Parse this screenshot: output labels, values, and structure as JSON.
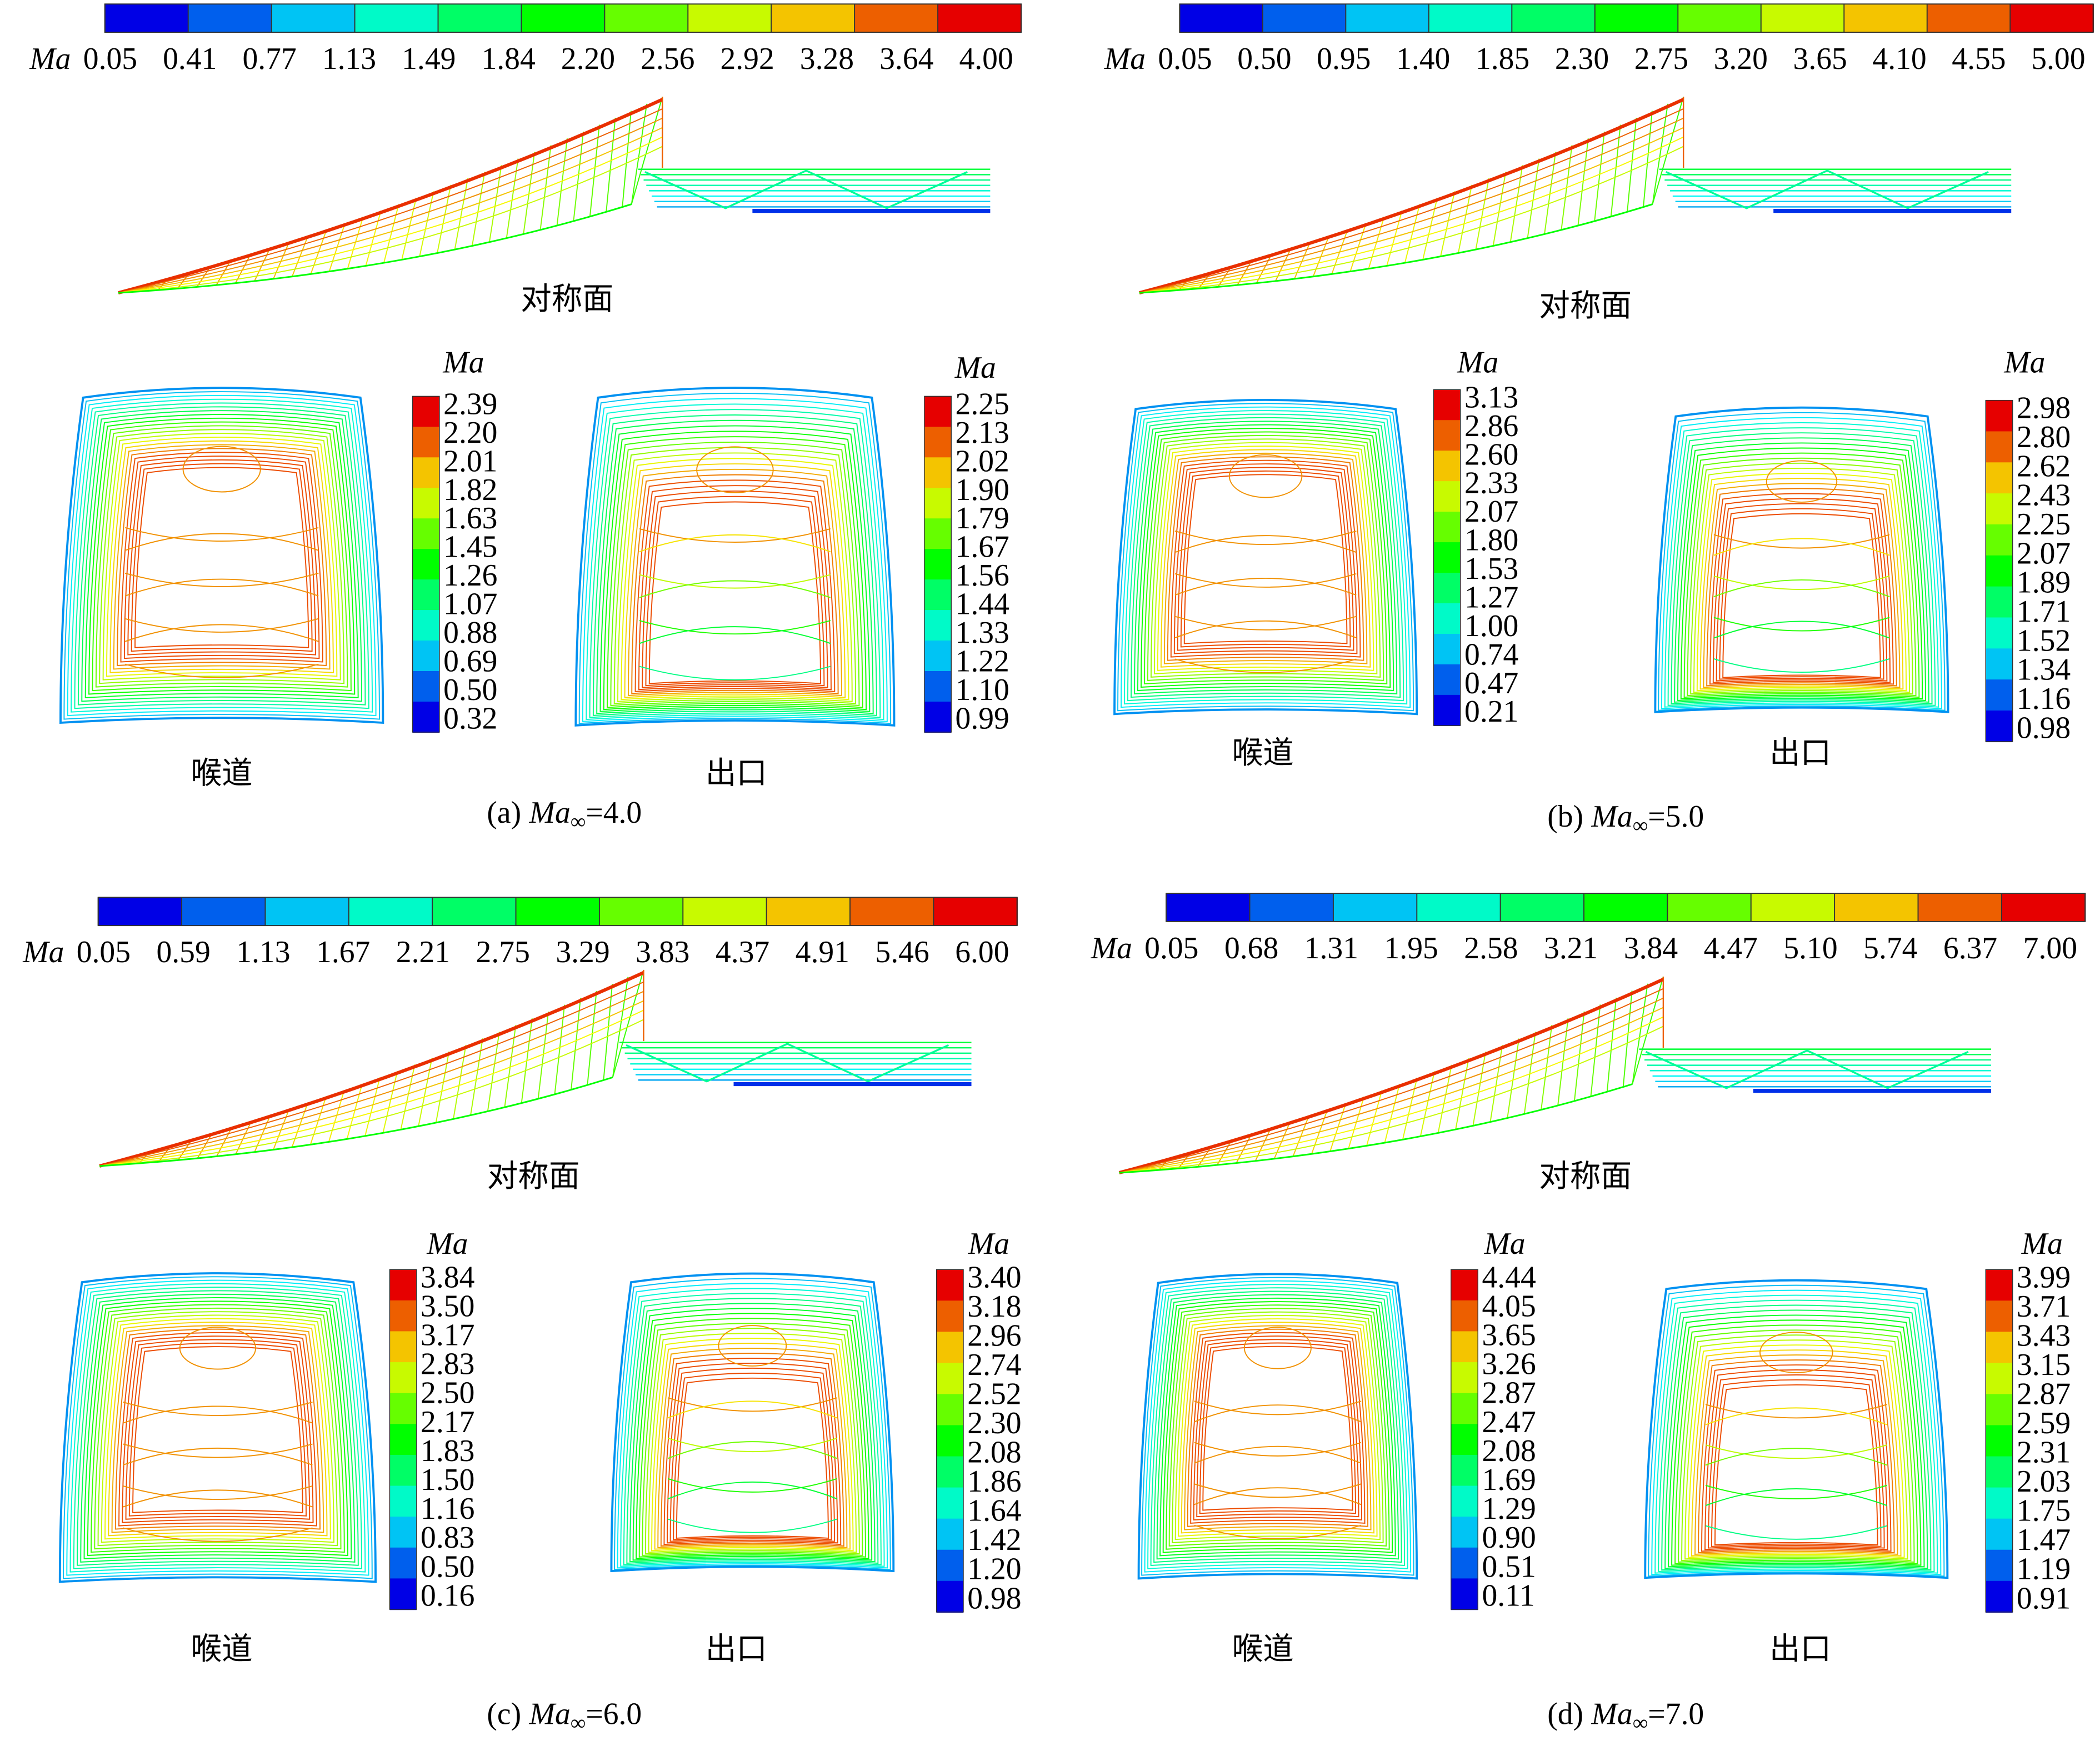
{
  "panels": [
    {
      "caption": {
        "label": "(a)",
        "symbol": "Ma",
        "subscript": "∞",
        "suffix": "=4.0"
      },
      "symmetry_plane": {
        "legend_title": "Ma",
        "legend_ticks": [
          "0.05",
          "0.41",
          "0.77",
          "1.13",
          "1.49",
          "1.84",
          "2.20",
          "2.56",
          "2.92",
          "3.28",
          "3.64",
          "4.00"
        ],
        "label": "对称面"
      },
      "throat": {
        "legend_title": "Ma",
        "legend_ticks": [
          "2.39",
          "2.20",
          "2.01",
          "1.82",
          "1.63",
          "1.45",
          "1.26",
          "1.07",
          "0.88",
          "0.69",
          "0.50",
          "0.32"
        ],
        "label": "喉道"
      },
      "exit": {
        "legend_title": "Ma",
        "legend_ticks": [
          "2.25",
          "2.13",
          "2.02",
          "1.90",
          "1.79",
          "1.67",
          "1.56",
          "1.44",
          "1.33",
          "1.22",
          "1.10",
          "0.99"
        ],
        "label": "出口"
      }
    },
    {
      "caption": {
        "label": "(b)",
        "symbol": "Ma",
        "subscript": "∞",
        "suffix": "=5.0"
      },
      "symmetry_plane": {
        "legend_title": "Ma",
        "legend_ticks": [
          "0.05",
          "0.50",
          "0.95",
          "1.40",
          "1.85",
          "2.30",
          "2.75",
          "3.20",
          "3.65",
          "4.10",
          "4.55",
          "5.00"
        ],
        "label": "对称面"
      },
      "throat": {
        "legend_title": "Ma",
        "legend_ticks": [
          "3.13",
          "2.86",
          "2.60",
          "2.33",
          "2.07",
          "1.80",
          "1.53",
          "1.27",
          "1.00",
          "0.74",
          "0.47",
          "0.21"
        ],
        "label": "喉道"
      },
      "exit": {
        "legend_title": "Ma",
        "legend_ticks": [
          "2.98",
          "2.80",
          "2.62",
          "2.43",
          "2.25",
          "2.07",
          "1.89",
          "1.71",
          "1.52",
          "1.34",
          "1.16",
          "0.98"
        ],
        "label": "出口"
      }
    },
    {
      "caption": {
        "label": "(c)",
        "symbol": "Ma",
        "subscript": "∞",
        "suffix": "=6.0"
      },
      "symmetry_plane": {
        "legend_title": "Ma",
        "legend_ticks": [
          "0.05",
          "0.59",
          "1.13",
          "1.67",
          "2.21",
          "2.75",
          "3.29",
          "3.83",
          "4.37",
          "4.91",
          "5.46",
          "6.00"
        ],
        "label": "对称面"
      },
      "throat": {
        "legend_title": "Ma",
        "legend_ticks": [
          "3.84",
          "3.50",
          "3.17",
          "2.83",
          "2.50",
          "2.17",
          "1.83",
          "1.50",
          "1.16",
          "0.83",
          "0.50",
          "0.16"
        ],
        "label": "喉道"
      },
      "exit": {
        "legend_title": "Ma",
        "legend_ticks": [
          "3.40",
          "3.18",
          "2.96",
          "2.74",
          "2.52",
          "2.30",
          "2.08",
          "1.86",
          "1.64",
          "1.42",
          "1.20",
          "0.98"
        ],
        "label": "出口"
      }
    },
    {
      "caption": {
        "label": "(d)",
        "symbol": "Ma",
        "subscript": "∞",
        "suffix": "=7.0"
      },
      "symmetry_plane": {
        "legend_title": "Ma",
        "legend_ticks": [
          "0.05",
          "0.68",
          "1.31",
          "1.95",
          "2.58",
          "3.21",
          "3.84",
          "4.47",
          "5.10",
          "5.74",
          "6.37",
          "7.00"
        ],
        "label": "对称面"
      },
      "throat": {
        "legend_title": "Ma",
        "legend_ticks": [
          "4.44",
          "4.05",
          "3.65",
          "3.26",
          "2.87",
          "2.47",
          "2.08",
          "1.69",
          "1.29",
          "0.90",
          "0.51",
          "0.11"
        ],
        "label": "喉道"
      },
      "exit": {
        "legend_title": "Ma",
        "legend_ticks": [
          "3.99",
          "3.71",
          "3.43",
          "3.15",
          "2.87",
          "2.59",
          "2.31",
          "2.03",
          "1.75",
          "1.47",
          "1.19",
          "0.91"
        ],
        "label": "出口"
      }
    }
  ]
}
